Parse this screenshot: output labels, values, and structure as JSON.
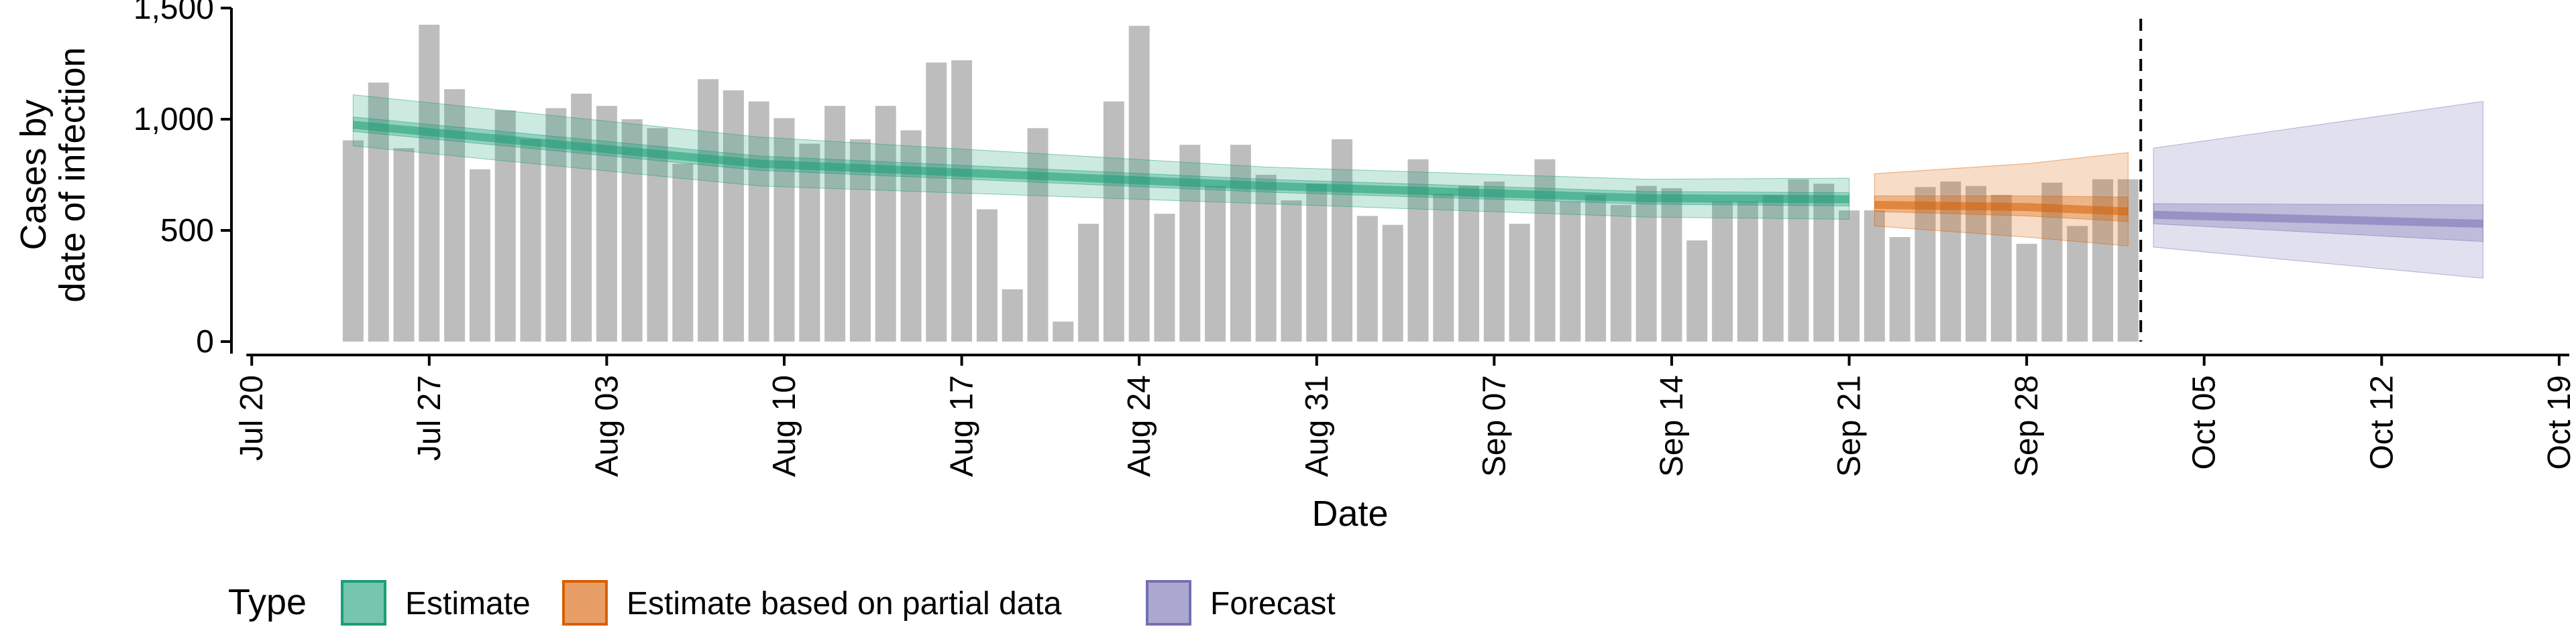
{
  "chart_data": {
    "type": "bar",
    "xlabel": "Date",
    "ylabel_lines": [
      "Cases by",
      "date of infection"
    ],
    "ylim": [
      0,
      1500
    ],
    "y_ticks": [
      0,
      500,
      1000,
      1500
    ],
    "y_tick_labels": [
      "0",
      "500",
      "1,000",
      "1,500"
    ],
    "x_tick_labels": [
      "Jul 20",
      "Jul 27",
      "Aug 03",
      "Aug 10",
      "Aug 17",
      "Aug 24",
      "Aug 31",
      "Sep 07",
      "Sep 14",
      "Sep 21",
      "Sep 28",
      "Oct 05",
      "Oct 12",
      "Oct 19"
    ],
    "x_tick_days": [
      0,
      7,
      14,
      21,
      28,
      35,
      42,
      49,
      56,
      63,
      70,
      77,
      84,
      91
    ],
    "x_range_days": [
      -0.8,
      91.4
    ],
    "bars": {
      "start_day": 4,
      "values": [
        905,
        1165,
        870,
        1425,
        1135,
        775,
        1040,
        910,
        1050,
        1115,
        1060,
        1000,
        960,
        800,
        1180,
        1130,
        1080,
        1005,
        890,
        1060,
        910,
        1060,
        950,
        1255,
        1265,
        595,
        235,
        960,
        90,
        530,
        1080,
        1420,
        575,
        885,
        700,
        885,
        750,
        635,
        710,
        910,
        565,
        525,
        820,
        665,
        700,
        720,
        530,
        820,
        630,
        660,
        615,
        700,
        690,
        455,
        630,
        630,
        660,
        730,
        710,
        590,
        590,
        470,
        695,
        720,
        700,
        660,
        440,
        715,
        520,
        730,
        730
      ]
    },
    "band_days": [
      4,
      20,
      40,
      55,
      63,
      64,
      70,
      74,
      75,
      88
    ],
    "series": [
      {
        "name": "Estimate",
        "color": "#1b9e77",
        "start_day": 4,
        "days": [
          4,
          20,
          40,
          55,
          63
        ],
        "median": [
          975,
          800,
          700,
          645,
          640
        ],
        "lower_90": [
          880,
          700,
          620,
          560,
          550
        ],
        "upper_90": [
          1110,
          920,
          785,
          730,
          735
        ],
        "lower_50": [
          945,
          770,
          672,
          618,
          610
        ],
        "upper_50": [
          1010,
          835,
          730,
          675,
          670
        ]
      },
      {
        "name": "Estimate based on partial data",
        "color": "#d95f02",
        "start_day": 64,
        "days": [
          64,
          70,
          74
        ],
        "median": [
          615,
          605,
          585
        ],
        "lower_90": [
          520,
          470,
          430
        ],
        "upper_90": [
          755,
          800,
          850
        ],
        "lower_50": [
          585,
          565,
          540
        ],
        "upper_50": [
          655,
          655,
          650
        ]
      },
      {
        "name": "Forecast",
        "color": "#7570b3",
        "start_day": 75,
        "days": [
          75,
          88
        ],
        "median": [
          570,
          530
        ],
        "lower_90": [
          425,
          285
        ],
        "upper_90": [
          870,
          1080
        ],
        "lower_50": [
          530,
          450
        ],
        "upper_50": [
          620,
          615
        ]
      }
    ],
    "vline_day": 74.5,
    "legend": {
      "title": "Type",
      "position": "bottom",
      "items": [
        "Estimate",
        "Estimate based on partial data",
        "Forecast"
      ]
    }
  }
}
